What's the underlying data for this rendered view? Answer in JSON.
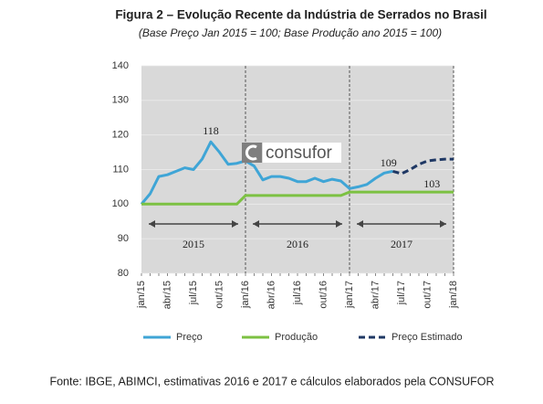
{
  "chart_data": {
    "type": "line",
    "title": "Figura 2 – Evolução Recente da Indústria  de Serrados no Brasil",
    "subtitle": "(Base Preço Jan 2015 = 100; Base Produção  ano 2015 = 100)",
    "source": "Fonte: IBGE, ABIMCI, estimativas 2016 e 2017 e cálculos elaborados pela CONSUFOR",
    "logo": "consufor",
    "categories": [
      "jan/15",
      null,
      null,
      "abr/15",
      null,
      null,
      "jul/15",
      null,
      null,
      "out/15",
      null,
      null,
      "jan/16",
      null,
      null,
      "abr/16",
      null,
      null,
      "jul/16",
      null,
      null,
      "out/16",
      null,
      null,
      "jan/17",
      null,
      null,
      "abr/17",
      null,
      null,
      "jul/17",
      null,
      null,
      "out/17",
      null,
      null,
      "jan/18"
    ],
    "series": [
      {
        "name": "Preço",
        "color": "#3fa5d6",
        "dash": false,
        "values": [
          100,
          103,
          108,
          108.5,
          109.5,
          110.5,
          110,
          113,
          118,
          115,
          111.5,
          111.8,
          112.5,
          111,
          107,
          108,
          108,
          107.5,
          106.5,
          106.5,
          107.5,
          106.5,
          107.2,
          106.7,
          104.5,
          105,
          105.7,
          107.5,
          109,
          109.5,
          null,
          null,
          null,
          null,
          null,
          null,
          null
        ]
      },
      {
        "name": "Produção",
        "color": "#7cc142",
        "dash": false,
        "values": [
          100,
          100,
          100,
          100,
          100,
          100,
          100,
          100,
          100,
          100,
          100,
          100,
          102.5,
          102.5,
          102.5,
          102.5,
          102.5,
          102.5,
          102.5,
          102.5,
          102.5,
          102.5,
          102.5,
          102.5,
          103.5,
          103.5,
          103.5,
          103.5,
          103.5,
          103.5,
          103.5,
          103.5,
          103.5,
          103.5,
          103.5,
          103.5,
          103.5
        ]
      },
      {
        "name": "Preço Estimado",
        "color": "#1f3864",
        "dash": true,
        "values": [
          null,
          null,
          null,
          null,
          null,
          null,
          null,
          null,
          null,
          null,
          null,
          null,
          null,
          null,
          null,
          null,
          null,
          null,
          null,
          null,
          null,
          null,
          null,
          null,
          null,
          null,
          null,
          null,
          null,
          109.5,
          108.8,
          110,
          111.5,
          112.5,
          112.8,
          113,
          113
        ]
      }
    ],
    "annotations": [
      "118",
      "109",
      "103"
    ],
    "periods": [
      "2015",
      "2016",
      "2017"
    ],
    "ylim": [
      80,
      140
    ],
    "yticks": [
      80,
      90,
      100,
      110,
      120,
      130,
      140
    ],
    "grid": true
  }
}
